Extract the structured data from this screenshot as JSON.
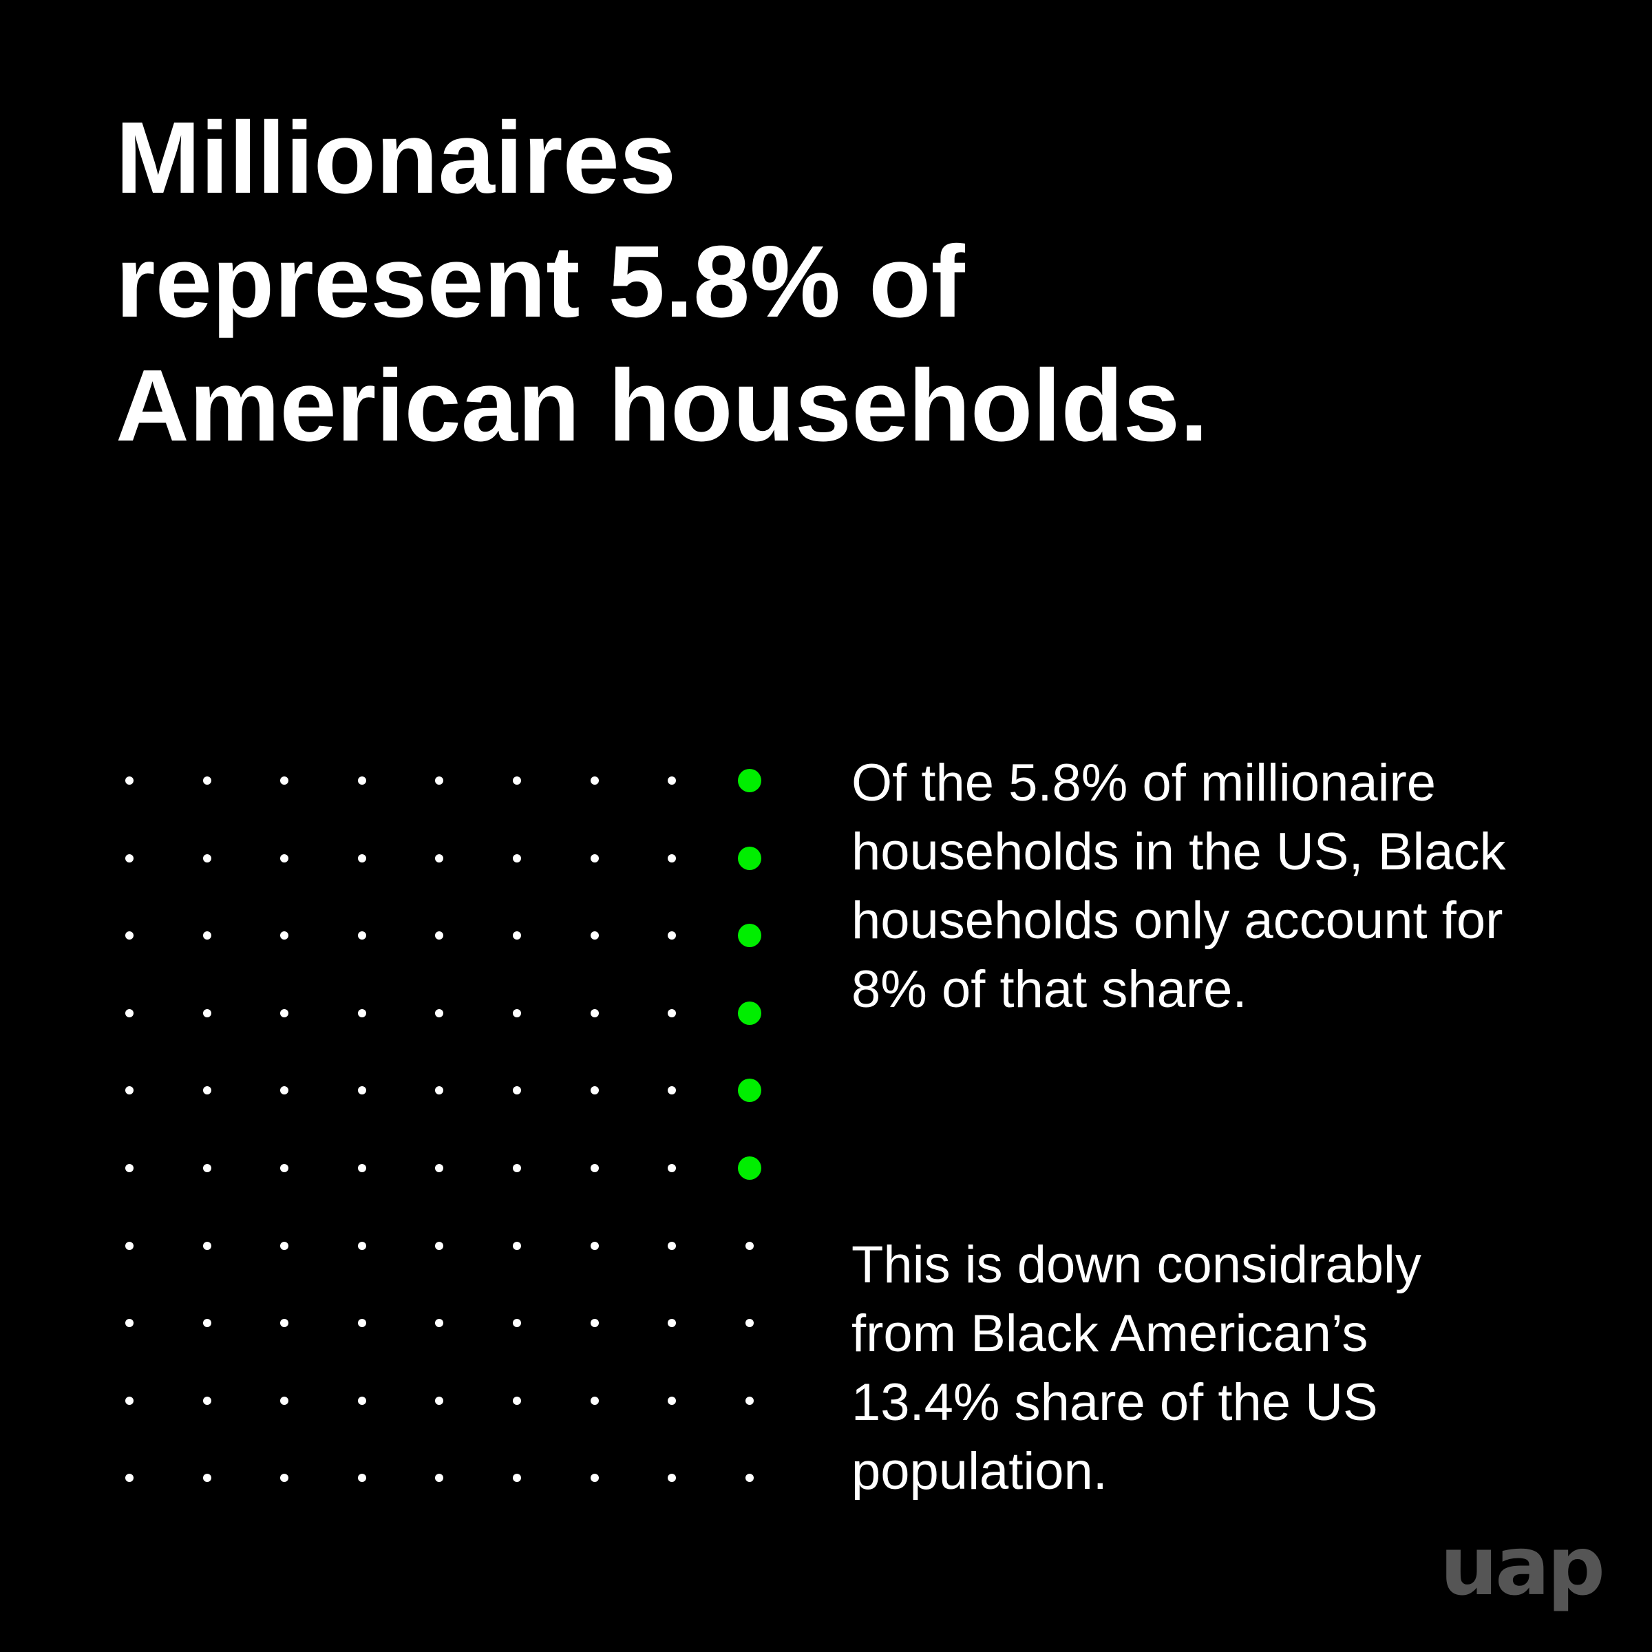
{
  "headline": {
    "lines": [
      "Millionaires",
      "represent 5.8% of",
      "American households."
    ]
  },
  "dot_grid": {
    "rows": 10,
    "columns": 9,
    "highlighted_column": 9,
    "highlighted_count": 6,
    "dot_color": "#ffffff",
    "highlight_color": "#00ee00"
  },
  "paragraph_1": {
    "lines": [
      "Of the 5.8% of millionaire",
      "households in the US, Black",
      "households only account for",
      "8% of that share."
    ]
  },
  "paragraph_2": {
    "lines": [
      "This is down considrably",
      "from Black American’s",
      "13.4% share of the US",
      "population."
    ]
  },
  "logo": {
    "text": "uap",
    "color": "#555555"
  }
}
